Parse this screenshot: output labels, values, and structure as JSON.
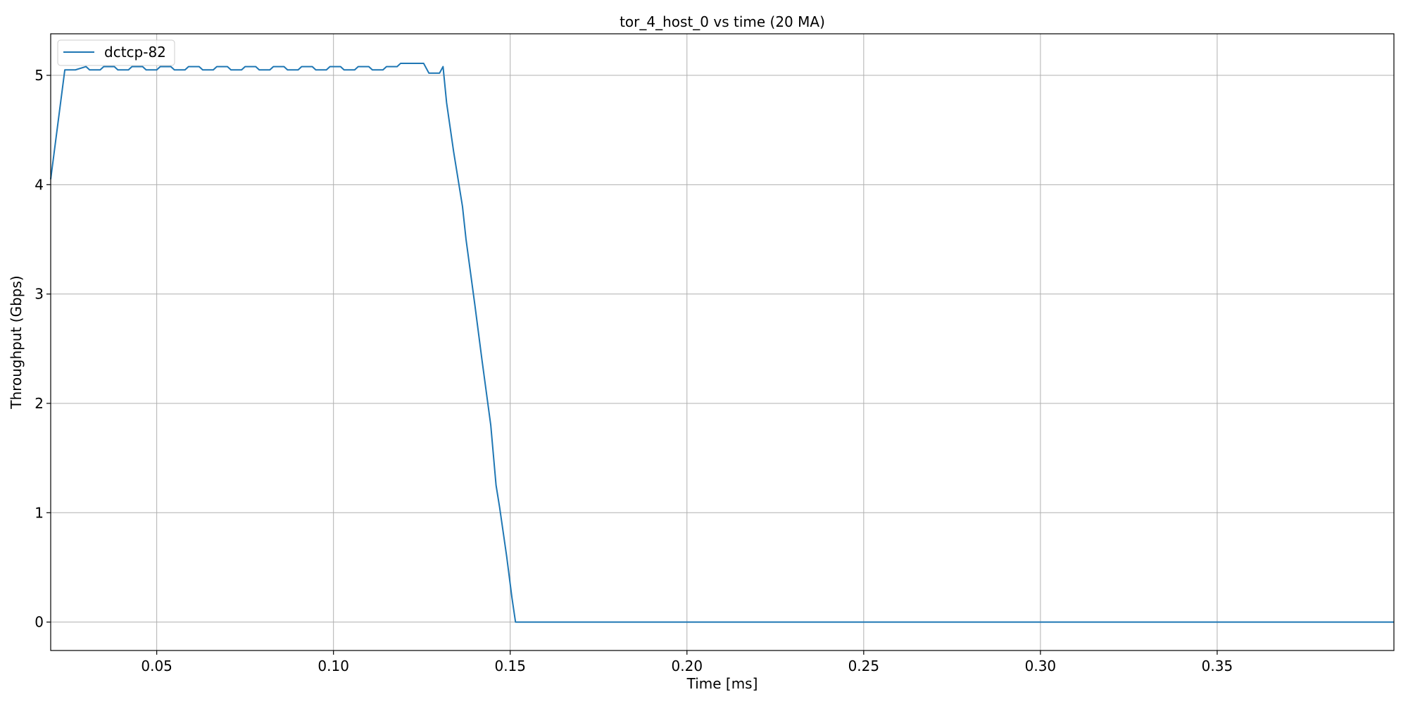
{
  "chart_data": {
    "type": "line",
    "title": "tor_4_host_0 vs time (20 MA)",
    "xlabel": "Time [ms]",
    "ylabel": "Throughput (Gbps)",
    "xlim": [
      0.02,
      0.4
    ],
    "ylim": [
      -0.26,
      5.38
    ],
    "xticks": [
      0.05,
      0.1,
      0.15,
      0.2,
      0.25,
      0.3,
      0.35
    ],
    "xtick_labels": [
      "0.05",
      "0.10",
      "0.15",
      "0.20",
      "0.25",
      "0.30",
      "0.35"
    ],
    "yticks": [
      0,
      1,
      2,
      3,
      4,
      5
    ],
    "ytick_labels": [
      "0",
      "1",
      "2",
      "3",
      "4",
      "5"
    ],
    "grid": true,
    "legend": "upper-left",
    "series": [
      {
        "name": "dctcp-82",
        "color": "#1f77b4",
        "x": [
          0.02,
          0.024,
          0.027,
          0.03,
          0.031,
          0.034,
          0.035,
          0.038,
          0.039,
          0.042,
          0.043,
          0.046,
          0.047,
          0.05,
          0.051,
          0.054,
          0.055,
          0.058,
          0.059,
          0.062,
          0.063,
          0.066,
          0.067,
          0.07,
          0.071,
          0.074,
          0.075,
          0.078,
          0.079,
          0.082,
          0.083,
          0.086,
          0.087,
          0.09,
          0.091,
          0.094,
          0.095,
          0.098,
          0.099,
          0.102,
          0.103,
          0.106,
          0.107,
          0.11,
          0.111,
          0.114,
          0.115,
          0.118,
          0.119,
          0.122,
          0.1255,
          0.127,
          0.13,
          0.131,
          0.132,
          0.134,
          0.1365,
          0.1375,
          0.14,
          0.142,
          0.1445,
          0.146,
          0.147,
          0.149,
          0.1505,
          0.1515,
          0.16,
          0.2,
          0.25,
          0.3,
          0.35,
          0.4
        ],
        "y": [
          4.05,
          5.05,
          5.05,
          5.08,
          5.05,
          5.05,
          5.08,
          5.08,
          5.05,
          5.05,
          5.08,
          5.08,
          5.05,
          5.05,
          5.08,
          5.08,
          5.05,
          5.05,
          5.08,
          5.08,
          5.05,
          5.05,
          5.08,
          5.08,
          5.05,
          5.05,
          5.08,
          5.08,
          5.05,
          5.05,
          5.08,
          5.08,
          5.05,
          5.05,
          5.08,
          5.08,
          5.05,
          5.05,
          5.08,
          5.08,
          5.05,
          5.05,
          5.08,
          5.08,
          5.05,
          5.05,
          5.08,
          5.08,
          5.11,
          5.11,
          5.11,
          5.02,
          5.02,
          5.08,
          4.75,
          4.3,
          3.8,
          3.5,
          2.9,
          2.4,
          1.8,
          1.25,
          1.05,
          0.6,
          0.22,
          0.0,
          0.0,
          0.0,
          0.0,
          0.0,
          0.0,
          0.0
        ]
      }
    ]
  }
}
